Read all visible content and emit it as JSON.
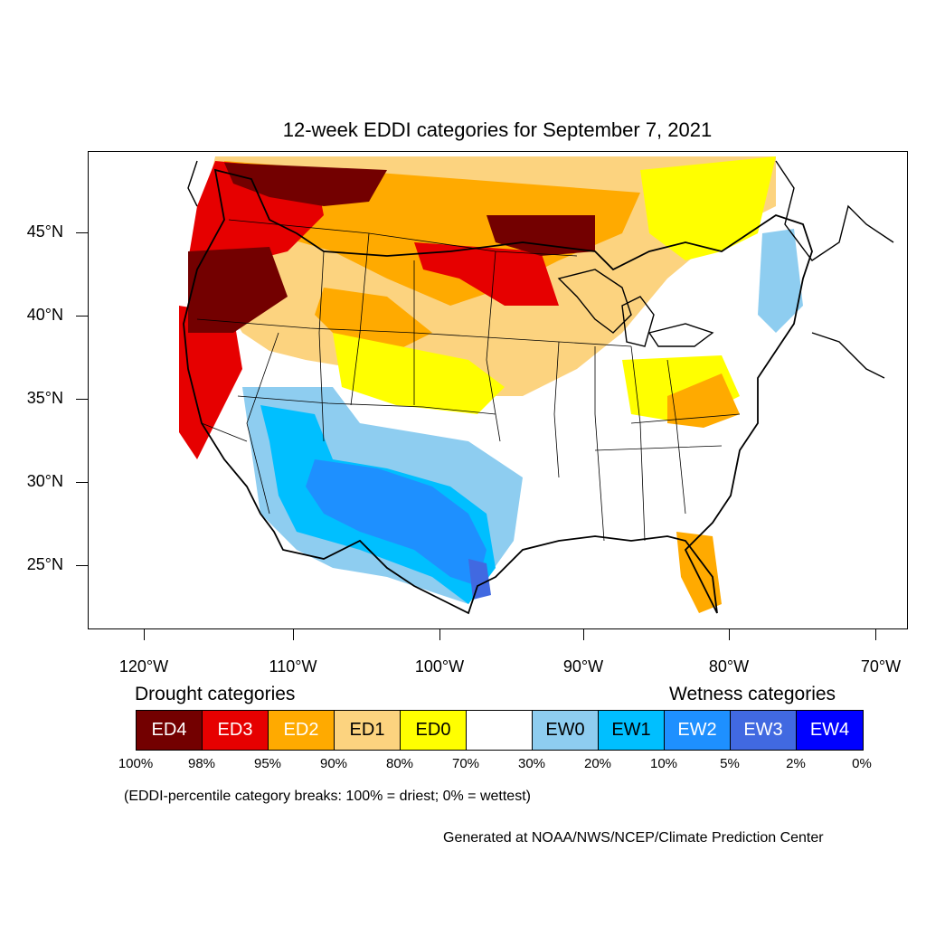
{
  "map": {
    "title": "12-week EDDI categories for September 7, 2021",
    "lat_labels": [
      "45°N",
      "40°N",
      "35°N",
      "30°N",
      "25°N"
    ],
    "lon_labels": [
      "120°W",
      "110°W",
      "100°W",
      "90°W",
      "80°W",
      "70°W"
    ]
  },
  "legend": {
    "drought_heading": "Drought categories",
    "wetness_heading": "Wetness categories",
    "categories": [
      {
        "label": "ED4",
        "color": "#730000",
        "text_color": "#ffffff"
      },
      {
        "label": "ED3",
        "color": "#e60000",
        "text_color": "#ffffff"
      },
      {
        "label": "ED2",
        "color": "#ffaa00",
        "text_color": "#ffffff"
      },
      {
        "label": "ED1",
        "color": "#fcd37f",
        "text_color": "#000000"
      },
      {
        "label": "ED0",
        "color": "#ffff00",
        "text_color": "#000000"
      },
      {
        "label": "",
        "color": "#ffffff",
        "text_color": "#000000"
      },
      {
        "label": "EW0",
        "color": "#8ecdf0",
        "text_color": "#000000"
      },
      {
        "label": "EW1",
        "color": "#00bfff",
        "text_color": "#000000"
      },
      {
        "label": "EW2",
        "color": "#1e90ff",
        "text_color": "#ffffff"
      },
      {
        "label": "EW3",
        "color": "#4169e1",
        "text_color": "#ffffff"
      },
      {
        "label": "EW4",
        "color": "#0000ff",
        "text_color": "#ffffff"
      }
    ],
    "breaks": [
      "100%",
      "98%",
      "95%",
      "90%",
      "80%",
      "70%",
      "30%",
      "20%",
      "10%",
      "5%",
      "2%",
      "0%"
    ],
    "note": "(EDDI-percentile category breaks: 100% = driest; 0% = wettest)"
  },
  "credit": "Generated at NOAA/NWS/NCEP/Climate Prediction Center"
}
